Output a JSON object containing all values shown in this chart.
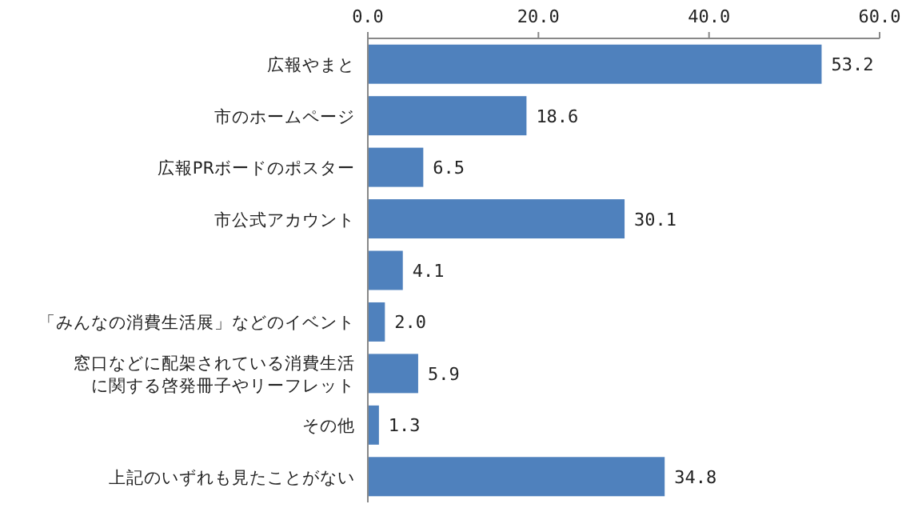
{
  "chart_data": {
    "type": "bar",
    "orientation": "horizontal",
    "categories": [
      "広報やまと",
      "市のホームページ",
      "広報PRボードのポスター",
      "市公式アカウント",
      null,
      "「みんなの消費生活展」などのイベント",
      "窓口などに配架されている消費生活に関する啓発冊子やリーフレット",
      "その他",
      "上記のいずれも見たことがない"
    ],
    "values": [
      53.2,
      18.6,
      6.5,
      30.1,
      4.1,
      2.0,
      5.9,
      1.3,
      34.8
    ],
    "value_labels": [
      "53.2",
      "18.6",
      "6.5",
      "30.1",
      "4.1",
      "2.0",
      "5.9",
      "1.3",
      "34.8"
    ],
    "color": "#4f81bd",
    "xlim": [
      0,
      60
    ],
    "xticks": [
      {
        "value": 0,
        "label": "0.0"
      },
      {
        "value": 20,
        "label": "20.0"
      },
      {
        "value": 40,
        "label": "40.0"
      },
      {
        "value": 60,
        "label": "60.0"
      }
    ],
    "grid": false
  }
}
